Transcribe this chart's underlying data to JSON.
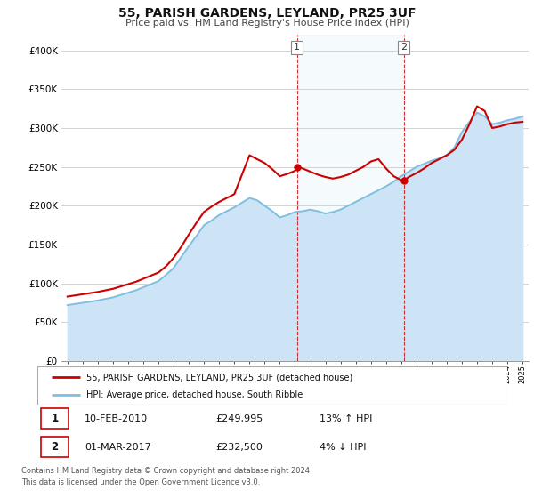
{
  "title": "55, PARISH GARDENS, LEYLAND, PR25 3UF",
  "subtitle": "Price paid vs. HM Land Registry's House Price Index (HPI)",
  "background_color": "#ffffff",
  "grid_color": "#cccccc",
  "hpi_color": "#7fbfdf",
  "hpi_fill_color": "#cce4f5",
  "price_color": "#cc0000",
  "ylim": [
    0,
    420000
  ],
  "yticks": [
    0,
    50000,
    100000,
    150000,
    200000,
    250000,
    300000,
    350000,
    400000
  ],
  "ytick_labels": [
    "£0",
    "£50K",
    "£100K",
    "£150K",
    "£200K",
    "£250K",
    "£300K",
    "£350K",
    "£400K"
  ],
  "sale1_x": 2010.12,
  "sale1_price": 249995,
  "sale2_x": 2017.17,
  "sale2_price": 232500,
  "footnote": "Contains HM Land Registry data © Crown copyright and database right 2024.\nThis data is licensed under the Open Government Licence v3.0.",
  "legend_label1": "55, PARISH GARDENS, LEYLAND, PR25 3UF (detached house)",
  "legend_label2": "HPI: Average price, detached house, South Ribble",
  "table_row1": [
    "1",
    "10-FEB-2010",
    "£249,995",
    "13% ↑ HPI"
  ],
  "table_row2": [
    "2",
    "01-MAR-2017",
    "£232,500",
    "4% ↓ HPI"
  ],
  "hpi_x": [
    1995.0,
    1995.5,
    1996.0,
    1996.5,
    1997.0,
    1997.5,
    1998.0,
    1998.5,
    1999.0,
    1999.5,
    2000.0,
    2000.5,
    2001.0,
    2001.5,
    2002.0,
    2002.5,
    2003.0,
    2003.5,
    2004.0,
    2004.5,
    2005.0,
    2005.5,
    2006.0,
    2006.5,
    2007.0,
    2007.5,
    2008.0,
    2008.5,
    2009.0,
    2009.5,
    2010.0,
    2010.5,
    2011.0,
    2011.5,
    2012.0,
    2012.5,
    2013.0,
    2013.5,
    2014.0,
    2014.5,
    2015.0,
    2015.5,
    2016.0,
    2016.5,
    2017.0,
    2017.5,
    2018.0,
    2018.5,
    2019.0,
    2019.5,
    2020.0,
    2020.5,
    2021.0,
    2021.5,
    2022.0,
    2022.5,
    2023.0,
    2023.5,
    2024.0,
    2024.5,
    2025.0
  ],
  "hpi_v": [
    72000,
    73500,
    75000,
    76500,
    78000,
    80000,
    82000,
    85000,
    88000,
    91000,
    95000,
    99000,
    103000,
    111000,
    120000,
    134000,
    148000,
    161000,
    175000,
    181000,
    188000,
    193000,
    198000,
    204000,
    210000,
    207000,
    200000,
    193000,
    185000,
    188000,
    192000,
    193000,
    195000,
    193000,
    190000,
    192000,
    195000,
    200000,
    205000,
    210000,
    215000,
    220000,
    225000,
    231000,
    238000,
    244000,
    250000,
    254000,
    258000,
    261000,
    265000,
    275000,
    295000,
    308000,
    320000,
    315000,
    305000,
    307000,
    310000,
    312000,
    315000
  ],
  "price_x": [
    1995.0,
    1995.5,
    1996.0,
    1996.5,
    1997.0,
    1997.5,
    1998.0,
    1998.5,
    1999.0,
    1999.5,
    2000.0,
    2000.5,
    2001.0,
    2001.5,
    2002.0,
    2002.5,
    2003.0,
    2003.5,
    2004.0,
    2004.5,
    2005.0,
    2005.5,
    2006.0,
    2006.5,
    2007.0,
    2007.5,
    2008.0,
    2008.5,
    2009.0,
    2009.5,
    2010.0,
    2010.12,
    2010.5,
    2011.0,
    2011.5,
    2012.0,
    2012.5,
    2013.0,
    2013.5,
    2014.0,
    2014.5,
    2015.0,
    2015.5,
    2016.0,
    2016.5,
    2017.0,
    2017.17,
    2017.5,
    2018.0,
    2018.5,
    2019.0,
    2019.5,
    2020.0,
    2020.5,
    2021.0,
    2021.5,
    2022.0,
    2022.5,
    2023.0,
    2023.5,
    2024.0,
    2024.5,
    2025.0
  ],
  "price_v": [
    83000,
    84500,
    86000,
    87500,
    89000,
    91000,
    93000,
    96000,
    99000,
    102000,
    106000,
    110000,
    114000,
    122000,
    133000,
    147000,
    163000,
    178000,
    192000,
    199000,
    205000,
    210000,
    215000,
    240000,
    265000,
    260000,
    255000,
    247000,
    238000,
    241000,
    245000,
    249995,
    248000,
    244000,
    240000,
    237000,
    235000,
    237000,
    240000,
    245000,
    250000,
    257000,
    260000,
    248000,
    238000,
    233000,
    232500,
    237000,
    242000,
    248000,
    255000,
    260000,
    265000,
    272000,
    285000,
    305000,
    328000,
    322000,
    300000,
    302000,
    305000,
    307000,
    308000
  ]
}
